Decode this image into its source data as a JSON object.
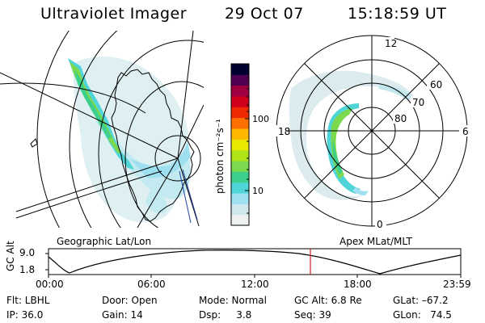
{
  "header": {
    "instrument": "Ultraviolet Imager",
    "date": "29 Oct 07",
    "time": "15:18:59 UT"
  },
  "panels": {
    "left_label": "Geographic Lat/Lon",
    "right_label": "Apex MLat/MLT"
  },
  "colorbar": {
    "unit": "photon cm⁻²s⁻¹",
    "tick_100": "100",
    "tick_10": "10",
    "colors": [
      "#eef2f2",
      "#d0e8ec",
      "#9edff0",
      "#4fd4d8",
      "#3cd08c",
      "#7cd84c",
      "#b0e418",
      "#e8e800",
      "#ffb800",
      "#ff7000",
      "#ee2a00",
      "#d0001a",
      "#a00040",
      "#500050",
      "#000030"
    ]
  },
  "polar": {
    "mlt_12": "12",
    "mlt_18": "18",
    "mlt_6": "6",
    "mlt_0": "0",
    "mlat_60": "60",
    "mlat_70": "70",
    "mlat_80": "80"
  },
  "altitude_plot": {
    "ylabel": "GC Alt",
    "ytick_high": "9.0",
    "ytick_low": "1.8",
    "xticks": [
      "00:00",
      "06:00",
      "12:00",
      "18:00",
      "23:59"
    ]
  },
  "status": {
    "flt": "Flt: LBHL",
    "ip": "IP: 36.0",
    "door": "Door: Open",
    "gain": "Gain: 14",
    "mode": "Mode: Normal",
    "dsp": "Dsp:     3.8",
    "gc_alt": "GC Alt: 6.8 Re",
    "seq": "Seq: 39",
    "glat": "GLat: –67.2",
    "glon": "GLon:   74.5"
  }
}
